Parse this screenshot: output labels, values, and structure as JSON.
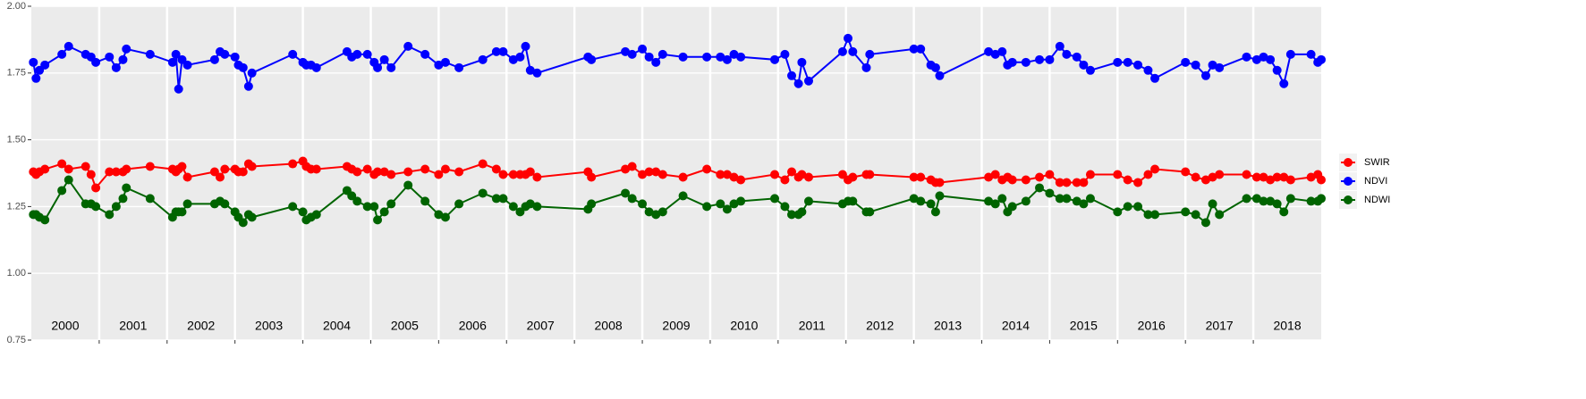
{
  "chart_data": {
    "type": "line",
    "categories": [
      "2000",
      "2001",
      "2002",
      "2003",
      "2004",
      "2005",
      "2006",
      "2007",
      "2008",
      "2009",
      "2010",
      "2011",
      "2012",
      "2013",
      "2014",
      "2015",
      "2016",
      "2017",
      "2018"
    ],
    "xlim": [
      2000,
      2019
    ],
    "xticks": [
      2001,
      2002,
      2003,
      2004,
      2005,
      2006,
      2007,
      2008,
      2009,
      2010,
      2011,
      2012,
      2013,
      2014,
      2015,
      2016,
      2017,
      2018
    ],
    "ylim": [
      0.75,
      2.0
    ],
    "yticks": [
      0.75,
      {
        "value": 1,
        "label": "1.00"
      },
      1.25,
      {
        "value": 1.5,
        "label": "1.50"
      },
      1.75,
      {
        "value": 2,
        "label": "2.00"
      }
    ],
    "grid": true,
    "legend": "right",
    "x": [
      2000.03,
      2000.07,
      2000.12,
      2000.2,
      2000.45,
      2000.55,
      2000.8,
      2000.88,
      2000.95,
      2001.15,
      2001.25,
      2001.35,
      2001.4,
      2001.75,
      2002.08,
      2002.13,
      2002.17,
      2002.22,
      2002.3,
      2002.7,
      2002.78,
      2002.85,
      2003.0,
      2003.05,
      2003.12,
      2003.2,
      2003.25,
      2003.85,
      2004.0,
      2004.05,
      2004.12,
      2004.2,
      2004.65,
      2004.72,
      2004.8,
      2004.95,
      2005.05,
      2005.1,
      2005.2,
      2005.3,
      2005.55,
      2005.8,
      2006.0,
      2006.1,
      2006.3,
      2006.65,
      2006.85,
      2006.95,
      2007.1,
      2007.2,
      2007.28,
      2007.35,
      2007.45,
      2008.2,
      2008.25,
      2008.75,
      2008.85,
      2009.0,
      2009.1,
      2009.2,
      2009.3,
      2009.6,
      2009.95,
      2010.15,
      2010.25,
      2010.35,
      2010.45,
      2010.95,
      2011.1,
      2011.2,
      2011.3,
      2011.35,
      2011.45,
      2011.95,
      2012.03,
      2012.1,
      2012.3,
      2012.35,
      2013.0,
      2013.1,
      2013.25,
      2013.32,
      2013.38,
      2014.1,
      2014.2,
      2014.3,
      2014.38,
      2014.45,
      2014.65,
      2014.85,
      2015.0,
      2015.15,
      2015.25,
      2015.4,
      2015.5,
      2015.6,
      2016.0,
      2016.15,
      2016.3,
      2016.45,
      2016.55,
      2017.0,
      2017.15,
      2017.3,
      2017.4,
      2017.5,
      2017.9,
      2018.05,
      2018.15,
      2018.25,
      2018.35,
      2018.45,
      2018.55,
      2018.85,
      2018.95,
      2019.0
    ],
    "series": [
      {
        "name": "SWIR",
        "color": "#ff0000",
        "values": [
          1.38,
          1.37,
          1.38,
          1.39,
          1.41,
          1.39,
          1.4,
          1.37,
          1.32,
          1.38,
          1.38,
          1.38,
          1.39,
          1.4,
          1.39,
          1.38,
          1.39,
          1.4,
          1.36,
          1.38,
          1.36,
          1.39,
          1.39,
          1.38,
          1.38,
          1.41,
          1.4,
          1.41,
          1.42,
          1.4,
          1.39,
          1.39,
          1.4,
          1.39,
          1.38,
          1.39,
          1.37,
          1.38,
          1.38,
          1.37,
          1.38,
          1.39,
          1.37,
          1.39,
          1.38,
          1.41,
          1.39,
          1.37,
          1.37,
          1.37,
          1.37,
          1.38,
          1.36,
          1.38,
          1.36,
          1.39,
          1.4,
          1.37,
          1.38,
          1.38,
          1.37,
          1.36,
          1.39,
          1.37,
          1.37,
          1.36,
          1.35,
          1.37,
          1.35,
          1.38,
          1.36,
          1.37,
          1.36,
          1.37,
          1.35,
          1.36,
          1.37,
          1.37,
          1.36,
          1.36,
          1.35,
          1.34,
          1.34,
          1.36,
          1.37,
          1.35,
          1.36,
          1.35,
          1.35,
          1.36,
          1.37,
          1.34,
          1.34,
          1.34,
          1.34,
          1.37,
          1.37,
          1.35,
          1.34,
          1.37,
          1.39,
          1.38,
          1.36,
          1.35,
          1.36,
          1.37,
          1.37,
          1.36,
          1.36,
          1.35,
          1.36,
          1.36,
          1.35,
          1.36,
          1.37,
          1.35
        ]
      },
      {
        "name": "NDVI",
        "color": "#0000ff",
        "values": [
          1.79,
          1.73,
          1.76,
          1.78,
          1.82,
          1.85,
          1.82,
          1.81,
          1.79,
          1.81,
          1.77,
          1.8,
          1.84,
          1.82,
          1.79,
          1.82,
          1.69,
          1.8,
          1.78,
          1.8,
          1.83,
          1.82,
          1.81,
          1.78,
          1.77,
          1.7,
          1.75,
          1.82,
          1.79,
          1.78,
          1.78,
          1.77,
          1.83,
          1.81,
          1.82,
          1.82,
          1.79,
          1.77,
          1.8,
          1.77,
          1.85,
          1.82,
          1.78,
          1.79,
          1.77,
          1.8,
          1.83,
          1.83,
          1.8,
          1.81,
          1.85,
          1.76,
          1.75,
          1.81,
          1.8,
          1.83,
          1.82,
          1.84,
          1.81,
          1.79,
          1.82,
          1.81,
          1.81,
          1.81,
          1.8,
          1.82,
          1.81,
          1.8,
          1.82,
          1.74,
          1.71,
          1.79,
          1.72,
          1.83,
          1.88,
          1.83,
          1.77,
          1.82,
          1.84,
          1.84,
          1.78,
          1.77,
          1.74,
          1.83,
          1.82,
          1.83,
          1.78,
          1.79,
          1.79,
          1.8,
          1.8,
          1.85,
          1.82,
          1.81,
          1.78,
          1.76,
          1.79,
          1.79,
          1.78,
          1.76,
          1.73,
          1.79,
          1.78,
          1.74,
          1.78,
          1.77,
          1.81,
          1.8,
          1.81,
          1.8,
          1.76,
          1.71,
          1.82,
          1.82,
          1.79,
          1.8
        ]
      },
      {
        "name": "NDWI",
        "color": "#006400",
        "values": [
          1.22,
          1.22,
          1.21,
          1.2,
          1.31,
          1.35,
          1.26,
          1.26,
          1.25,
          1.22,
          1.25,
          1.28,
          1.32,
          1.28,
          1.21,
          1.23,
          1.23,
          1.23,
          1.26,
          1.26,
          1.27,
          1.26,
          1.23,
          1.21,
          1.19,
          1.22,
          1.21,
          1.25,
          1.23,
          1.2,
          1.21,
          1.22,
          1.31,
          1.29,
          1.27,
          1.25,
          1.25,
          1.2,
          1.23,
          1.26,
          1.33,
          1.27,
          1.22,
          1.21,
          1.26,
          1.3,
          1.28,
          1.28,
          1.25,
          1.23,
          1.25,
          1.26,
          1.25,
          1.24,
          1.26,
          1.3,
          1.28,
          1.26,
          1.23,
          1.22,
          1.23,
          1.29,
          1.25,
          1.26,
          1.24,
          1.26,
          1.27,
          1.28,
          1.25,
          1.22,
          1.22,
          1.23,
          1.27,
          1.26,
          1.27,
          1.27,
          1.23,
          1.23,
          1.28,
          1.27,
          1.26,
          1.23,
          1.29,
          1.27,
          1.26,
          1.28,
          1.23,
          1.25,
          1.27,
          1.32,
          1.3,
          1.28,
          1.28,
          1.27,
          1.26,
          1.28,
          1.23,
          1.25,
          1.25,
          1.22,
          1.22,
          1.23,
          1.22,
          1.19,
          1.26,
          1.22,
          1.28,
          1.28,
          1.27,
          1.27,
          1.26,
          1.23,
          1.28,
          1.27,
          1.27,
          1.28
        ]
      }
    ]
  }
}
